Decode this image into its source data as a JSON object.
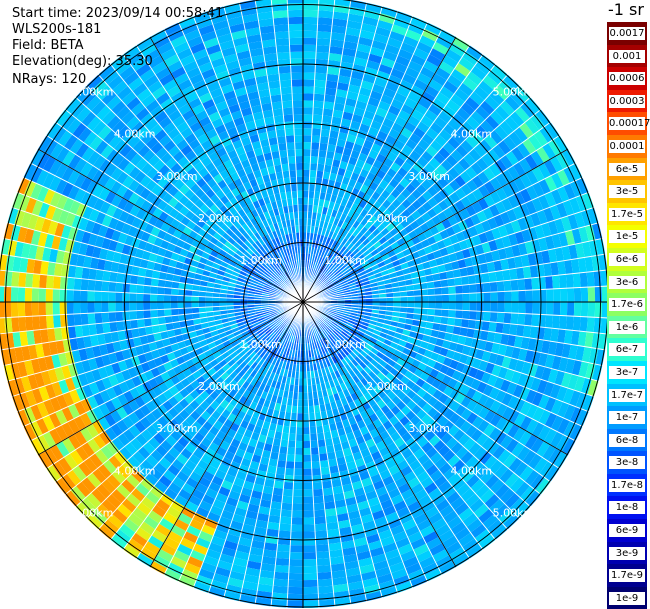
{
  "info": {
    "start_time": "Start time: 2023/09/14 00:58:41",
    "device": "WLS200s-181",
    "field": "Field: BETA",
    "elevation": "Elevation(deg): 35.30",
    "nrays": "NRays: 120"
  },
  "colorbar": {
    "title": "-1 sr",
    "labels": [
      "0.0017",
      "0.001",
      "0.0006",
      "0.0003",
      "0.00017",
      "0.0001",
      "6e-5",
      "3e-5",
      "1.7e-5",
      "1e-5",
      "6e-6",
      "3e-6",
      "1.7e-6",
      "1e-6",
      "6e-7",
      "3e-7",
      "1.7e-7",
      "1e-7",
      "6e-8",
      "3e-8",
      "1.7e-8",
      "1e-8",
      "6e-9",
      "3e-9",
      "1.7e-9",
      "1e-9"
    ],
    "colors": [
      "#7a0000",
      "#a40000",
      "#cc0000",
      "#ee1a00",
      "#ff4d00",
      "#ff7a00",
      "#ffa000",
      "#ffc400",
      "#ffe500",
      "#f4ff00",
      "#d2ff1e",
      "#b0ff3c",
      "#8cff62",
      "#62ffa0",
      "#2effd0",
      "#00e5ff",
      "#00c0ff",
      "#009cff",
      "#0078ff",
      "#0054ff",
      "#0030ff",
      "#0010f0",
      "#0000d0",
      "#0000b0",
      "#000090",
      "#000070"
    ]
  },
  "range_rings": {
    "labels": [
      "1.00km",
      "2.00km",
      "3.00km",
      "4.00km",
      "5.00km"
    ]
  }
}
